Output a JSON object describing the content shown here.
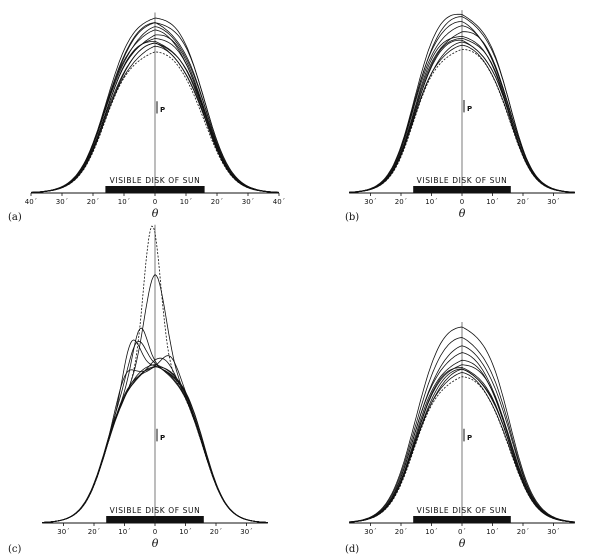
{
  "figure": {
    "disk_label": "VISIBLE DISK OF SUN",
    "marker_label": "P",
    "axis_symbol": "θ"
  },
  "chart_data": [
    {
      "type": "line",
      "panel": "(a)",
      "xlabel": "θ",
      "ticks": [
        -40,
        -30,
        -20,
        -10,
        0,
        10,
        20,
        30,
        40
      ],
      "tick_labels": [
        "40´",
        "30´",
        "20´",
        "10´",
        "0",
        "10´",
        "20´",
        "30´",
        "40´"
      ],
      "xlim": [
        -40,
        40
      ],
      "visible_disk": [
        -16,
        16
      ],
      "half_width": 17,
      "edge": 4.3,
      "peaks": [
        0.94,
        0.97,
        0.99,
        1.0,
        1.02,
        1.04,
        1.06,
        1.08,
        1.1,
        1.13,
        1.15,
        1.18
      ],
      "peak_offsets": [
        0,
        1,
        -1,
        2,
        -2,
        1,
        3,
        -1,
        2,
        0,
        4,
        2
      ],
      "bumps": []
    },
    {
      "type": "line",
      "panel": "(b)",
      "xlabel": "θ",
      "ticks": [
        -30,
        -20,
        -10,
        0,
        10,
        20,
        30
      ],
      "tick_labels": [
        "30´",
        "20´",
        "10´",
        "0",
        "10´",
        "20´",
        "30´"
      ],
      "xlim": [
        -37,
        37
      ],
      "visible_disk": [
        -16,
        16
      ],
      "half_width": 16.5,
      "edge": 3.9,
      "peaks": [
        0.94,
        0.96,
        0.98,
        1.0,
        1.02,
        1.04,
        1.06,
        1.09,
        1.12,
        1.15,
        1.18
      ],
      "peak_offsets": [
        0,
        -1,
        1,
        -2,
        0,
        -3,
        2,
        -2,
        -4,
        -1,
        -3
      ],
      "bumps": []
    },
    {
      "type": "line",
      "panel": "(c)",
      "xlabel": "θ",
      "ticks": [
        -30,
        -20,
        -10,
        0,
        10,
        20,
        30
      ],
      "tick_labels": [
        "30´",
        "20´",
        "10´",
        "0",
        "10´",
        "20´",
        "30´"
      ],
      "xlim": [
        -37,
        37
      ],
      "visible_disk": [
        -16,
        16
      ],
      "half_width": 16.5,
      "edge": 3.8,
      "peaks": [
        0.98,
        0.99,
        1.0,
        1.01,
        1.02,
        1.0,
        1.01,
        0.99,
        1.0,
        1.02
      ],
      "peak_offsets": [
        0,
        1,
        -1,
        2,
        -2,
        0,
        1,
        -1,
        0,
        2
      ],
      "bumps": [
        {
          "x": -1,
          "amp": 0.95,
          "w": 4
        },
        {
          "x": 0,
          "amp": 0.6,
          "w": 5
        },
        {
          "x": -5,
          "amp": 0.3,
          "w": 3.5
        },
        {
          "x": -8,
          "amp": 0.3,
          "w": 4
        },
        {
          "x": -6,
          "amp": 0.2,
          "w": 4
        },
        {
          "x": 5,
          "amp": 0.12,
          "w": 4
        },
        {
          "x": -10,
          "amp": 0.14,
          "w": 4
        },
        {
          "x": 3,
          "amp": 0.08,
          "w": 5
        }
      ]
    },
    {
      "type": "line",
      "panel": "(d)",
      "xlabel": "θ",
      "ticks": [
        -30,
        -20,
        -10,
        0,
        10,
        20,
        30
      ],
      "tick_labels": [
        "30´",
        "20´",
        "10´",
        "0´",
        "10´",
        "20´",
        "30´"
      ],
      "xlim": [
        -37,
        37
      ],
      "visible_disk": [
        -16,
        16
      ],
      "half_width": 16.5,
      "edge": 4.2,
      "peaks": [
        0.95,
        0.97,
        0.99,
        1.0,
        1.02,
        1.04,
        1.06,
        1.1,
        1.14,
        1.2,
        1.28
      ],
      "peak_offsets": [
        0,
        -1,
        1,
        0,
        -2,
        2,
        0,
        -1,
        1,
        0,
        0
      ],
      "bumps": []
    }
  ]
}
